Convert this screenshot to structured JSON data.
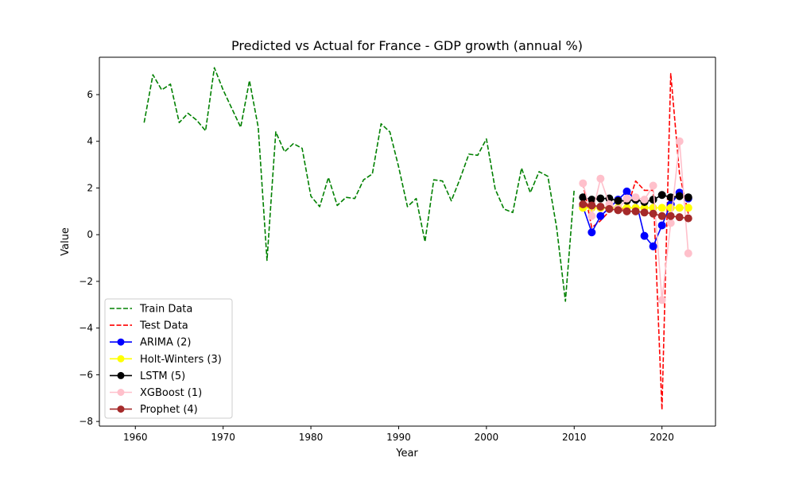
{
  "chart_data": {
    "type": "line",
    "title": "Predicted vs Actual for France - GDP growth (annual %)",
    "xlabel": "Year",
    "ylabel": "Value",
    "xlim": [
      1955.9,
      2026.1
    ],
    "ylim": [
      -8.2,
      7.6
    ],
    "xticks": [
      1960,
      1970,
      1980,
      1990,
      2000,
      2010,
      2020
    ],
    "yticks": [
      -8,
      -6,
      -4,
      -2,
      0,
      2,
      4,
      6
    ],
    "grid": false,
    "legend_position": "lower-left",
    "series": [
      {
        "name": "Train Data",
        "color": "#008000",
        "style": "dashed",
        "marker": "none",
        "x": [
          1961,
          1962,
          1963,
          1964,
          1965,
          1966,
          1967,
          1968,
          1969,
          1970,
          1971,
          1972,
          1973,
          1974,
          1975,
          1976,
          1977,
          1978,
          1979,
          1980,
          1981,
          1982,
          1983,
          1984,
          1985,
          1986,
          1987,
          1988,
          1989,
          1990,
          1991,
          1992,
          1993,
          1994,
          1995,
          1996,
          1997,
          1998,
          1999,
          2000,
          2001,
          2002,
          2003,
          2004,
          2005,
          2006,
          2007,
          2008,
          2009,
          2010
        ],
        "y": [
          4.8,
          6.85,
          6.2,
          6.45,
          4.8,
          5.2,
          4.9,
          4.45,
          7.15,
          6.2,
          5.4,
          4.6,
          6.6,
          4.6,
          -1.1,
          4.4,
          3.55,
          3.9,
          3.7,
          1.65,
          1.2,
          2.45,
          1.25,
          1.6,
          1.55,
          2.35,
          2.6,
          4.75,
          4.4,
          2.9,
          1.2,
          1.55,
          -0.3,
          2.35,
          2.3,
          1.45,
          2.4,
          3.45,
          3.4,
          4.1,
          1.95,
          1.1,
          0.95,
          2.85,
          1.8,
          2.7,
          2.5,
          0.3,
          -2.85,
          1.95
        ]
      },
      {
        "name": "Test Data",
        "color": "#ff0000",
        "style": "dashed",
        "marker": "none",
        "x": [
          2011,
          2012,
          2013,
          2014,
          2015,
          2016,
          2017,
          2018,
          2019,
          2020,
          2021,
          2022,
          2023
        ],
        "y": [
          2.2,
          0.3,
          0.6,
          1.0,
          1.1,
          1.1,
          2.3,
          1.9,
          1.9,
          -7.5,
          6.9,
          2.6,
          0.9
        ]
      },
      {
        "name": "ARIMA (2)",
        "color": "#0000ff",
        "style": "solid",
        "marker": "circle",
        "x": [
          2011,
          2012,
          2013,
          2014,
          2015,
          2016,
          2017,
          2018,
          2019,
          2020,
          2021,
          2022,
          2023
        ],
        "y": [
          1.2,
          0.1,
          0.8,
          1.15,
          1.5,
          1.85,
          1.5,
          -0.05,
          -0.5,
          0.4,
          1.3,
          1.8,
          1.55
        ]
      },
      {
        "name": "Holt-Winters (3)",
        "color": "#ffff00",
        "style": "solid",
        "marker": "circle",
        "x": [
          2011,
          2012,
          2013,
          2014,
          2015,
          2016,
          2017,
          2018,
          2019,
          2020,
          2021,
          2022,
          2023
        ],
        "y": [
          1.15,
          1.15,
          1.15,
          1.15,
          1.15,
          1.15,
          1.15,
          1.15,
          1.15,
          1.15,
          1.15,
          1.15,
          1.15
        ]
      },
      {
        "name": "LSTM (5)",
        "color": "#000000",
        "style": "solid",
        "marker": "circle",
        "x": [
          2011,
          2012,
          2013,
          2014,
          2015,
          2016,
          2017,
          2018,
          2019,
          2020,
          2021,
          2022,
          2023
        ],
        "y": [
          1.6,
          1.5,
          1.55,
          1.55,
          1.45,
          1.45,
          1.5,
          1.4,
          1.5,
          1.7,
          1.6,
          1.65,
          1.6
        ]
      },
      {
        "name": "XGBoost (1)",
        "color": "#ffc0cb",
        "style": "solid",
        "marker": "circle",
        "x": [
          2011,
          2012,
          2013,
          2014,
          2015,
          2016,
          2017,
          2018,
          2019,
          2020,
          2021,
          2022,
          2023
        ],
        "y": [
          2.2,
          0.8,
          2.4,
          1.3,
          1.1,
          1.55,
          1.6,
          1.5,
          2.1,
          -2.8,
          0.5,
          4.0,
          -0.8
        ]
      },
      {
        "name": "Prophet (4)",
        "color": "#a52a2a",
        "style": "solid",
        "marker": "circle",
        "x": [
          2011,
          2012,
          2013,
          2014,
          2015,
          2016,
          2017,
          2018,
          2019,
          2020,
          2021,
          2022,
          2023
        ],
        "y": [
          1.3,
          1.25,
          1.2,
          1.1,
          1.05,
          1.0,
          1.0,
          0.95,
          0.9,
          0.8,
          0.8,
          0.75,
          0.7
        ]
      }
    ]
  }
}
